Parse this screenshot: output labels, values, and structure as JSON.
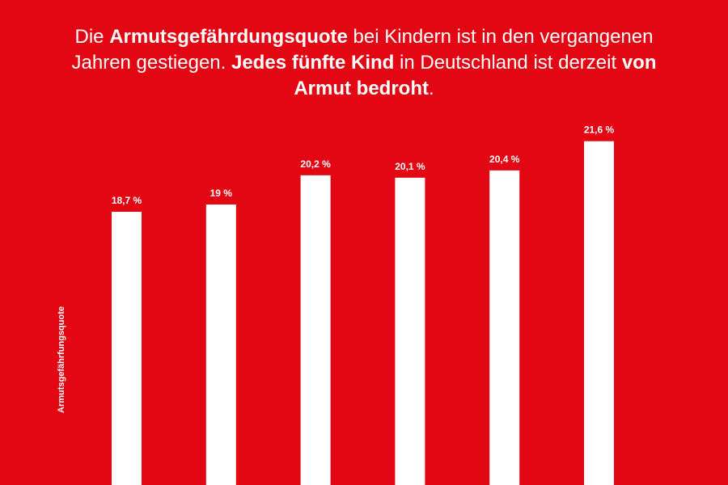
{
  "headline": {
    "segments": [
      {
        "text": "Die ",
        "bold": false
      },
      {
        "text": "Armutsgefährdungsquote",
        "bold": true
      },
      {
        "text": " bei Kindern ist in den vergangenen Jahren gestiegen. ",
        "bold": false
      },
      {
        "text": "Jedes fünfte Kind",
        "bold": true
      },
      {
        "text": " in Deutschland ist derzeit ",
        "bold": false
      },
      {
        "text": "von Armut bedroht",
        "bold": true
      },
      {
        "text": ".",
        "bold": false
      }
    ]
  },
  "colors": {
    "background": "#e30613",
    "bars": "#ffffff",
    "text": "#ffffff"
  },
  "chart_data": {
    "type": "bar",
    "title": "",
    "xlabel": "",
    "ylabel": "Armutsgefährfungsquote",
    "values": [
      18.7,
      19,
      20.2,
      20.1,
      20.4,
      21.6
    ],
    "data_labels": [
      "18,7 %",
      "19 %",
      "20,2 %",
      "20,1 %",
      "20,4 %",
      "21,6 %"
    ],
    "unit": "%",
    "grid": false,
    "legend": "none"
  }
}
